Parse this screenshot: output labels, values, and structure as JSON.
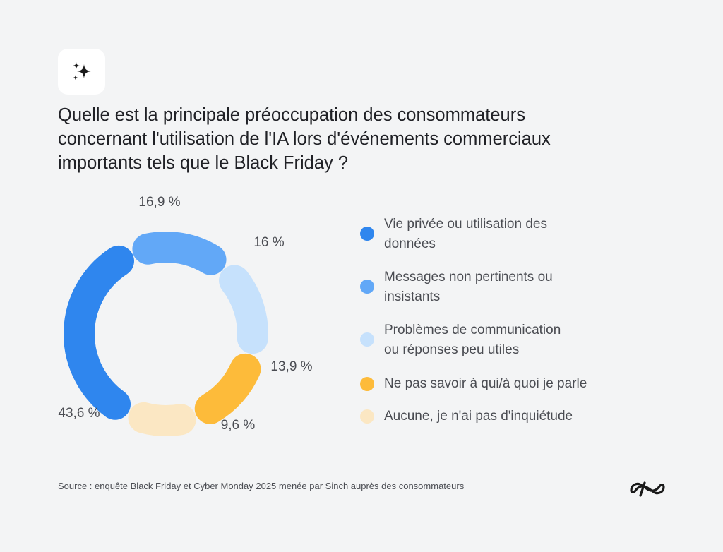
{
  "icon": "sparkles-icon",
  "title_lines": [
    "Quelle est la principale préoccupation des consommateurs",
    "concernant l'utilisation de l'IA lors d'événements commerciaux",
    "importants tels que le Black Friday ?"
  ],
  "chart_data": {
    "type": "pie",
    "style": "donut",
    "title": "Quelle est la principale préoccupation des consommateurs concernant l'utilisation de l'IA lors d'événements commerciaux importants tels que le Black Friday ?",
    "categories": [
      "Vie privée ou utilisation des données",
      "Messages non pertinents ou insistants",
      "Problèmes de communication ou réponses peu utiles",
      "Ne pas savoir à qui/à quoi je parle",
      "Aucune, je n'ai pas d'inquiétude"
    ],
    "values": [
      43.6,
      16.9,
      16,
      13.9,
      9.6
    ],
    "data_labels": [
      "43,6 %",
      "16,9 %",
      "16 %",
      "13,9 %",
      "9,6 %"
    ],
    "colors": [
      "#2f86ee",
      "#62a8f7",
      "#c6e1fc",
      "#fdbb3a",
      "#fbe7c3"
    ],
    "legend": [
      {
        "lines": [
          "Vie privée ou utilisation des",
          "données"
        ]
      },
      {
        "lines": [
          "Messages non pertinents ou",
          "insistants"
        ]
      },
      {
        "lines": [
          "Problèmes de communication",
          "ou réponses peu utiles"
        ]
      },
      {
        "lines": [
          "Ne pas savoir à qui/à quoi je parle"
        ]
      },
      {
        "lines": [
          "Aucune, je n'ai pas d'inquiétude"
        ]
      }
    ],
    "legend_position": "right"
  },
  "source": "Source : enquête Black Friday et Cyber Monday 2025 menée par Sinch auprès des consommateurs",
  "logo": "sinch-logo-icon"
}
